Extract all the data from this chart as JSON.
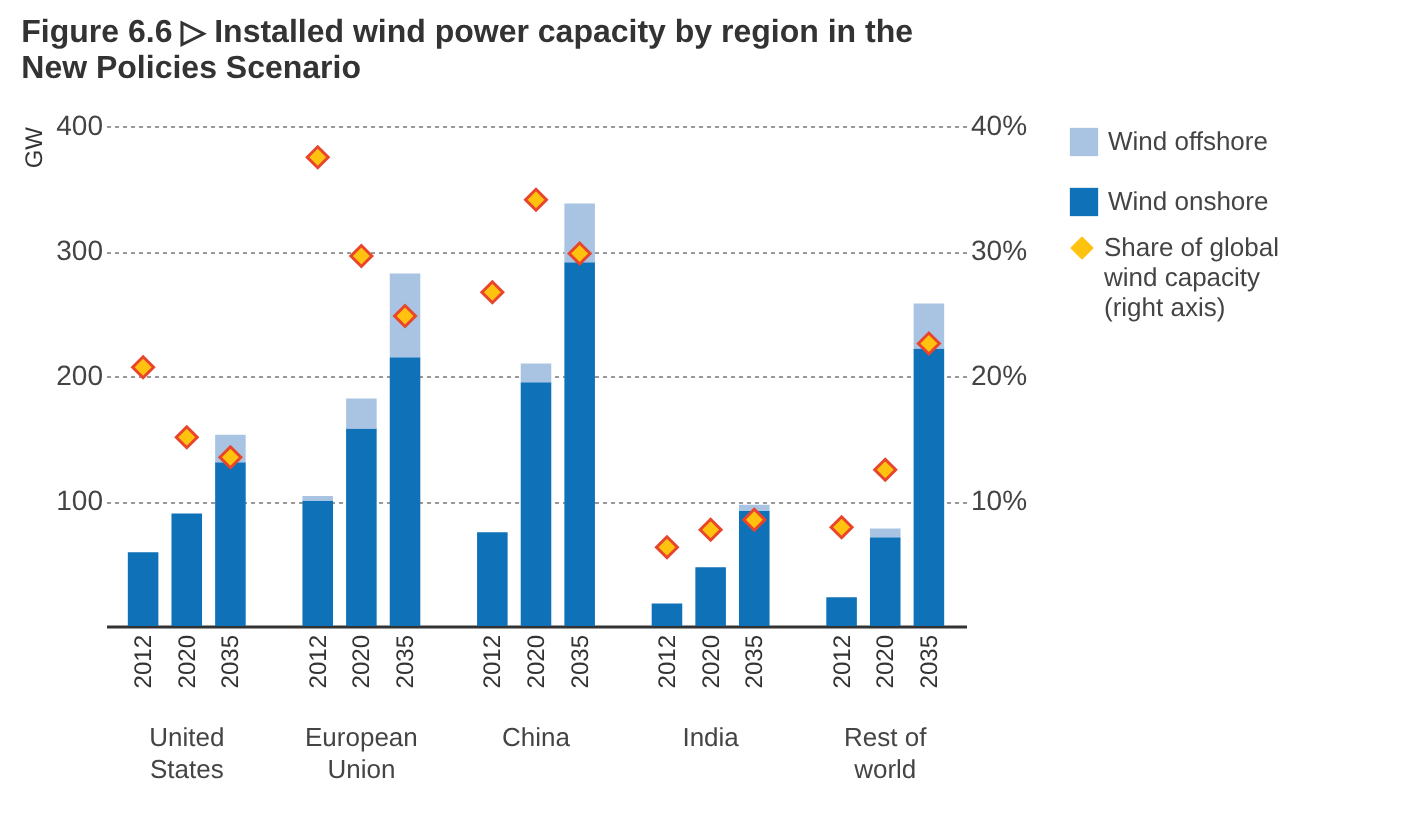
{
  "chart_data": {
    "type": "bar",
    "title": "Figure 6.6 ▷ Installed wind power capacity by region in the New Policies Scenario",
    "categories": [
      "2012",
      "2020",
      "2035",
      "2012",
      "2020",
      "2035",
      "2012",
      "2020",
      "2035",
      "2012",
      "2020",
      "2035",
      "2012",
      "2020",
      "2035"
    ],
    "annotations": [
      "United\nStates",
      "European\nUnion",
      "China",
      "India",
      "Rest of\nworld"
    ],
    "stacked": true,
    "ylabel": "GW",
    "ylim": [
      0,
      400
    ],
    "yticks": [
      100,
      200,
      300,
      400
    ],
    "y2lim": [
      0,
      40
    ],
    "y2ticks": [
      {
        "value": 10,
        "label": "10%"
      },
      {
        "value": 20,
        "label": "20%"
      },
      {
        "value": 30,
        "label": "30%"
      },
      {
        "value": 40,
        "label": "40%"
      }
    ],
    "grid": "y",
    "legend": "right",
    "series": [
      {
        "name": "Wind onshore",
        "color": "#0f71b8",
        "values": [
          59,
          90,
          131,
          100,
          158,
          215,
          75,
          195,
          291,
          18,
          47,
          92,
          23,
          71,
          222
        ]
      },
      {
        "name": "Wind offshore",
        "color": "#a9c4e2",
        "values": [
          0,
          0,
          22,
          4,
          24,
          67,
          0,
          15,
          47,
          0,
          0,
          5,
          0,
          7,
          36
        ]
      },
      {
        "name": "Share of global\nwind capacity\n(right axis)",
        "type": "scatter",
        "axis": "y2",
        "marker": "diamond",
        "color": "#ffc20e",
        "values": [
          20.7,
          15.1,
          13.5,
          37.5,
          29.6,
          24.8,
          26.7,
          34.1,
          29.8,
          6.3,
          7.7,
          8.5,
          7.9,
          12.5,
          22.6
        ]
      }
    ]
  }
}
